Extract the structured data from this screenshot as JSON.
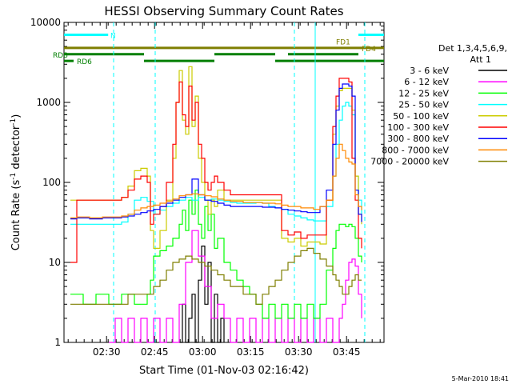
{
  "chart_data": {
    "type": "line",
    "title": "HESSI Observing Summary Count Rates",
    "xlabel": "Start Time (01-Nov-03 02:16:42)",
    "ylabel": "Count Rate (s⁻¹ detector⁻¹)",
    "ylabel_main": "Count Rate (s",
    "ylabel_sup1": "-1",
    "ylabel_mid": " detector",
    "ylabel_sup2": "-1",
    "ylabel_end": ")",
    "x_unit": "minutes since 02:16:42",
    "xlim": [
      0,
      100
    ],
    "ylim": [
      1,
      10000
    ],
    "yscale": "log",
    "x_ticks": [
      {
        "label": "02:30",
        "value": 13.3
      },
      {
        "label": "02:45",
        "value": 28.3
      },
      {
        "label": "03:00",
        "value": 43.3
      },
      {
        "label": "03:15",
        "value": 58.3
      },
      {
        "label": "03:30",
        "value": 73.3
      },
      {
        "label": "03:45",
        "value": 88.3
      }
    ],
    "y_ticks": [
      {
        "label": "10000",
        "value": 10000
      },
      {
        "label": "1000",
        "value": 1000
      },
      {
        "label": "100",
        "value": 100
      },
      {
        "label": "10",
        "value": 10
      },
      {
        "label": "1",
        "value": 1
      }
    ],
    "legend_title_1": "Det 1,3,4,5,6,9,",
    "legend_title_2": "Att 1",
    "legend_position": "right",
    "series": [
      {
        "name": "3 - 6 keV",
        "color": "#000000",
        "x": [
          36,
          37,
          38,
          39,
          40,
          41,
          42,
          43,
          44,
          45,
          46,
          47,
          48,
          49,
          50
        ],
        "y": [
          1,
          3,
          1,
          2,
          4,
          1,
          6,
          16,
          3,
          10,
          1,
          4,
          1,
          2,
          1
        ]
      },
      {
        "name": "6 - 12 keV",
        "color": "#ff00ff",
        "x": [
          14,
          16,
          18,
          20,
          22,
          24,
          26,
          28,
          30,
          32,
          34,
          36,
          38,
          40,
          42,
          44,
          46,
          48,
          50,
          52,
          54,
          56,
          58,
          60,
          62,
          64,
          66,
          68,
          70,
          72,
          74,
          76,
          78,
          80,
          82,
          84,
          86,
          87,
          88,
          89,
          90,
          91,
          92,
          93
        ],
        "y": [
          1,
          2,
          1,
          2,
          1,
          2,
          1,
          2,
          1,
          2,
          1,
          3,
          10,
          25,
          12,
          5,
          2,
          3,
          2,
          1,
          2,
          1,
          2,
          1,
          2,
          1,
          2,
          1,
          2,
          1,
          2,
          1,
          2,
          1,
          2,
          1,
          2,
          3,
          6,
          10,
          11,
          9,
          4,
          2
        ]
      },
      {
        "name": "12 - 25 keV",
        "color": "#00ff00",
        "x": [
          2,
          6,
          10,
          14,
          18,
          22,
          26,
          27,
          28,
          30,
          32,
          34,
          36,
          37,
          38,
          39,
          40,
          41,
          42,
          43,
          44,
          45,
          46,
          47,
          48,
          50,
          52,
          54,
          56,
          58,
          60,
          62,
          64,
          66,
          68,
          70,
          72,
          74,
          76,
          78,
          80,
          82,
          84,
          85,
          86,
          87,
          88,
          89,
          90,
          91,
          92,
          93
        ],
        "y": [
          4,
          3,
          4,
          3,
          4,
          3,
          4,
          6,
          12,
          14,
          16,
          20,
          30,
          45,
          25,
          60,
          40,
          80,
          30,
          20,
          50,
          25,
          40,
          15,
          20,
          10,
          8,
          6,
          5,
          4,
          3,
          2,
          3,
          2,
          3,
          2,
          3,
          2,
          3,
          2,
          3,
          8,
          15,
          25,
          30,
          30,
          28,
          30,
          28,
          20,
          12,
          10
        ]
      },
      {
        "name": "25 - 50 keV",
        "color": "#00ffff",
        "x": [
          2,
          4,
          8,
          12,
          16,
          18,
          20,
          22,
          24,
          26,
          28,
          30,
          32,
          34,
          36,
          38,
          40,
          42,
          44,
          46,
          48,
          50,
          52,
          54,
          56,
          58,
          60,
          62,
          64,
          66,
          68,
          70,
          72,
          74,
          76,
          78,
          80,
          82,
          84,
          85,
          86,
          87,
          88,
          89,
          90,
          91,
          92,
          93
        ],
        "y": [
          30,
          30,
          30,
          30,
          30,
          32,
          40,
          60,
          65,
          58,
          40,
          45,
          50,
          55,
          60,
          65,
          60,
          65,
          60,
          62,
          60,
          58,
          56,
          55,
          55,
          55,
          56,
          55,
          50,
          48,
          46,
          40,
          38,
          36,
          34,
          33,
          33,
          50,
          120,
          300,
          600,
          900,
          1000,
          900,
          700,
          120,
          60,
          40
        ]
      },
      {
        "name": "50 - 100 keV",
        "color": "#cccc00",
        "x": [
          2,
          4,
          8,
          12,
          16,
          18,
          20,
          22,
          24,
          26,
          27,
          28,
          30,
          32,
          34,
          35,
          36,
          37,
          38,
          39,
          40,
          41,
          42,
          43,
          44,
          45,
          46,
          47,
          48,
          50,
          52,
          54,
          56,
          58,
          60,
          62,
          64,
          66,
          68,
          70,
          72,
          74,
          76,
          78,
          80,
          82,
          84,
          85,
          86,
          87,
          88,
          89,
          90,
          91,
          92,
          93
        ],
        "y": [
          60,
          60,
          60,
          60,
          60,
          65,
          90,
          140,
          150,
          120,
          25,
          15,
          25,
          60,
          200,
          1000,
          2500,
          600,
          400,
          2800,
          500,
          1200,
          200,
          100,
          60,
          40,
          60,
          50,
          80,
          60,
          60,
          60,
          60,
          60,
          60,
          60,
          60,
          60,
          20,
          18,
          20,
          16,
          18,
          18,
          17,
          60,
          400,
          900,
          1400,
          1500,
          1500,
          1500,
          800,
          120,
          40,
          30
        ]
      },
      {
        "name": "100 - 300 keV",
        "color": "#ff0000",
        "x": [
          2,
          4,
          8,
          12,
          16,
          18,
          20,
          22,
          24,
          26,
          27,
          28,
          30,
          32,
          34,
          35,
          36,
          37,
          38,
          39,
          40,
          41,
          42,
          43,
          44,
          45,
          46,
          47,
          48,
          50,
          52,
          54,
          56,
          58,
          60,
          62,
          64,
          66,
          68,
          70,
          72,
          74,
          76,
          78,
          80,
          82,
          84,
          85,
          86,
          87,
          88,
          89,
          90,
          91,
          92,
          93
        ],
        "y": [
          10,
          60,
          60,
          60,
          60,
          65,
          80,
          110,
          120,
          100,
          30,
          40,
          50,
          100,
          300,
          1000,
          1800,
          700,
          500,
          1600,
          600,
          1000,
          300,
          200,
          100,
          80,
          100,
          120,
          100,
          80,
          70,
          70,
          70,
          70,
          70,
          70,
          70,
          70,
          25,
          22,
          24,
          20,
          22,
          22,
          22,
          60,
          500,
          1200,
          2000,
          2000,
          2000,
          1800,
          200,
          60,
          20,
          15
        ]
      },
      {
        "name": "300 - 800 keV",
        "color": "#0000ff",
        "x": [
          2,
          4,
          8,
          12,
          16,
          18,
          20,
          22,
          24,
          26,
          28,
          30,
          32,
          34,
          36,
          38,
          40,
          42,
          44,
          46,
          48,
          50,
          52,
          54,
          56,
          58,
          60,
          62,
          64,
          66,
          68,
          70,
          72,
          74,
          76,
          78,
          80,
          82,
          84,
          85,
          86,
          87,
          88,
          89,
          90,
          91,
          92,
          93
        ],
        "y": [
          35,
          36,
          35,
          36,
          36,
          37,
          38,
          40,
          42,
          44,
          46,
          50,
          55,
          60,
          65,
          70,
          110,
          70,
          60,
          58,
          55,
          52,
          50,
          50,
          50,
          50,
          50,
          49,
          49,
          48,
          46,
          45,
          44,
          43,
          42,
          42,
          50,
          80,
          300,
          800,
          1500,
          1700,
          1700,
          1600,
          1200,
          80,
          40,
          32
        ]
      },
      {
        "name": "800 - 7000 keV",
        "color": "#ff8800",
        "x": [
          2,
          4,
          8,
          12,
          16,
          18,
          20,
          22,
          24,
          26,
          28,
          30,
          32,
          34,
          36,
          38,
          40,
          42,
          44,
          46,
          48,
          50,
          52,
          54,
          56,
          58,
          60,
          62,
          64,
          66,
          68,
          70,
          72,
          74,
          76,
          78,
          80,
          82,
          84,
          85,
          86,
          87,
          88,
          89,
          90,
          91,
          92,
          93
        ],
        "y": [
          36,
          37,
          36,
          37,
          37,
          38,
          40,
          45,
          48,
          50,
          52,
          55,
          58,
          62,
          68,
          70,
          72,
          70,
          68,
          66,
          62,
          60,
          58,
          58,
          56,
          56,
          56,
          55,
          55,
          54,
          52,
          50,
          50,
          48,
          48,
          46,
          50,
          60,
          120,
          200,
          300,
          250,
          200,
          180,
          170,
          70,
          50,
          45
        ]
      },
      {
        "name": "7000 - 20000 keV",
        "color": "#7f7f00",
        "x": [
          2,
          4,
          8,
          12,
          16,
          18,
          20,
          22,
          24,
          26,
          28,
          30,
          32,
          34,
          36,
          38,
          40,
          42,
          44,
          46,
          48,
          50,
          52,
          54,
          56,
          58,
          60,
          62,
          64,
          66,
          68,
          70,
          72,
          74,
          76,
          78,
          80,
          82,
          84,
          85,
          86,
          87,
          88,
          89,
          90,
          91,
          92,
          93
        ],
        "y": [
          3,
          3,
          3,
          3,
          3,
          3,
          4,
          4,
          4,
          4,
          5,
          6,
          8,
          10,
          11,
          12,
          11,
          10,
          9,
          8,
          7,
          6,
          5,
          5,
          4,
          4,
          3,
          4,
          5,
          6,
          8,
          10,
          12,
          14,
          15,
          13,
          11,
          9,
          7,
          6,
          5,
          4,
          4,
          5,
          6,
          7,
          6,
          6
        ]
      }
    ],
    "annotations": [
      {
        "label": "N",
        "color": "#00ffff"
      },
      {
        "label": "FD1",
        "color": "#7f7f00"
      },
      {
        "label": "FD4",
        "color": "#7f7f00"
      },
      {
        "label": "RD8",
        "color": "#007f00"
      },
      {
        "label": "RD6",
        "color": "#007f00"
      }
    ],
    "flag_bars": [
      {
        "name": "N",
        "color": "#00ffff",
        "y": 7000,
        "segments": [
          [
            0,
            13.8
          ],
          [
            92,
            100
          ]
        ]
      },
      {
        "name": "FD",
        "color": "#7f7f00",
        "y": 4800,
        "segments": [
          [
            0,
            100
          ]
        ]
      },
      {
        "name": "RD8",
        "color": "#007f00",
        "y": 4000,
        "segments": [
          [
            0,
            25
          ],
          [
            47,
            66
          ],
          [
            70,
            92
          ]
        ]
      },
      {
        "name": "RD6",
        "color": "#007f00",
        "y": 3300,
        "segments": [
          [
            0,
            3
          ],
          [
            25,
            47
          ],
          [
            66,
            100
          ]
        ]
      }
    ],
    "vlines": [
      {
        "color": "#00ffff",
        "x": 15.5,
        "dashed": true
      },
      {
        "color": "#00ffff",
        "x": 28.5,
        "dashed": true
      },
      {
        "color": "#00ffff",
        "x": 72,
        "dashed": true
      },
      {
        "color": "#00ffff",
        "x": 78.5,
        "dashed": false
      },
      {
        "color": "#00ffff",
        "x": 94,
        "dashed": true
      }
    ],
    "grid": false
  },
  "footer": {
    "timestamp": "5-Mar-2010 18:41"
  }
}
